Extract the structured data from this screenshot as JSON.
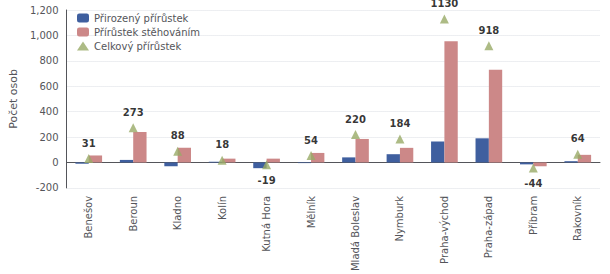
{
  "chart_data": {
    "type": "bar",
    "categories": [
      "Benešov",
      "Beroun",
      "Kladno",
      "Kolín",
      "Kutná Hora",
      "Mělník",
      "Mladá Boleslav",
      "Nymburk",
      "Praha-východ",
      "Praha-západ",
      "Příbram",
      "Rakovník"
    ],
    "series": [
      {
        "name": "Přirozený přírůstek",
        "color": "#3F5F9F",
        "values": [
          -10,
          20,
          -30,
          5,
          -45,
          -5,
          40,
          65,
          165,
          190,
          -15,
          10
        ]
      },
      {
        "name": "Přírůstek stěhováním",
        "color": "#CC8888",
        "values": [
          55,
          240,
          115,
          30,
          30,
          75,
          185,
          115,
          955,
          730,
          -30,
          60
        ]
      },
      {
        "name": "Celkový přírůstek",
        "color": "#99AA66",
        "type": "scatter",
        "marker": "triangle",
        "data_labels": true,
        "values": [
          31,
          273,
          88,
          18,
          -19,
          54,
          220,
          184,
          1130,
          918,
          -44,
          64
        ]
      }
    ],
    "ylabel": "Počet osob",
    "ylim": [
      -200,
      1200
    ],
    "yticks": [
      -200,
      0,
      200,
      400,
      600,
      800,
      1000,
      1200
    ],
    "grid": true,
    "legend": "upper left"
  }
}
